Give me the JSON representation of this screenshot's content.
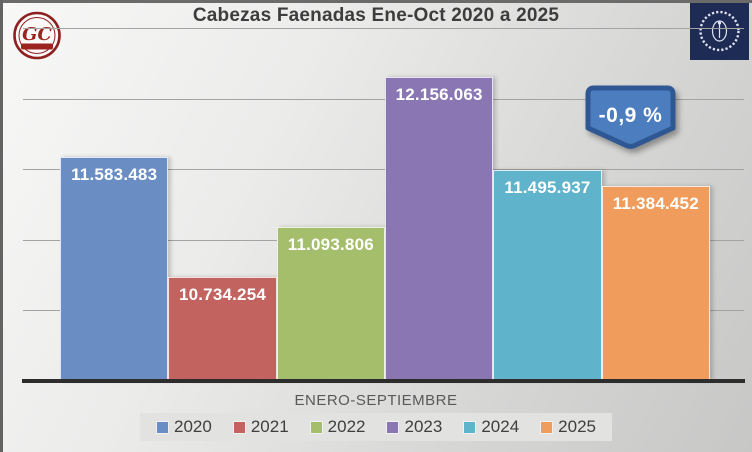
{
  "slide": {
    "title": "Cabezas Faenadas Ene-Oct 2020 a 2025",
    "logo_left": {
      "text": "GC",
      "ring_color": "#8e201f"
    },
    "badge": {
      "label": "-0,9 %",
      "fill": "#4C7EBF",
      "border": "#2E5794"
    },
    "axis_category": "ENERO-SEPTIEMBRE"
  },
  "chart_data": {
    "type": "bar",
    "title": "Cabezas Faenadas Ene-Oct 2020 a 2025",
    "categories": [
      "ENERO-SEPTIEMBRE"
    ],
    "series": [
      {
        "name": "2020",
        "value": 11583483,
        "label": "11.583.483",
        "color": "#6A8EC3"
      },
      {
        "name": "2021",
        "value": 10734254,
        "label": "10.734.254",
        "color": "#C26360"
      },
      {
        "name": "2022",
        "value": 11093806,
        "label": "11.093.806",
        "color": "#A4BE6C"
      },
      {
        "name": "2023",
        "value": 12156063,
        "label": "12.156.063",
        "color": "#8A76B2"
      },
      {
        "name": "2024",
        "value": 11495937,
        "label": "11.495.937",
        "color": "#5FB3CB"
      },
      {
        "name": "2025",
        "value": 11384452,
        "label": "11.384.452",
        "color": "#F09C5D"
      }
    ],
    "annotation": {
      "text": "-0,9 %"
    },
    "ylim": [
      10000000,
      12500000
    ],
    "gridline_step": 500000,
    "grid": true,
    "y_axis_labels": false,
    "legend_position": "bottom",
    "xlabel": "ENERO-SEPTIEMBRE",
    "ylabel": ""
  }
}
